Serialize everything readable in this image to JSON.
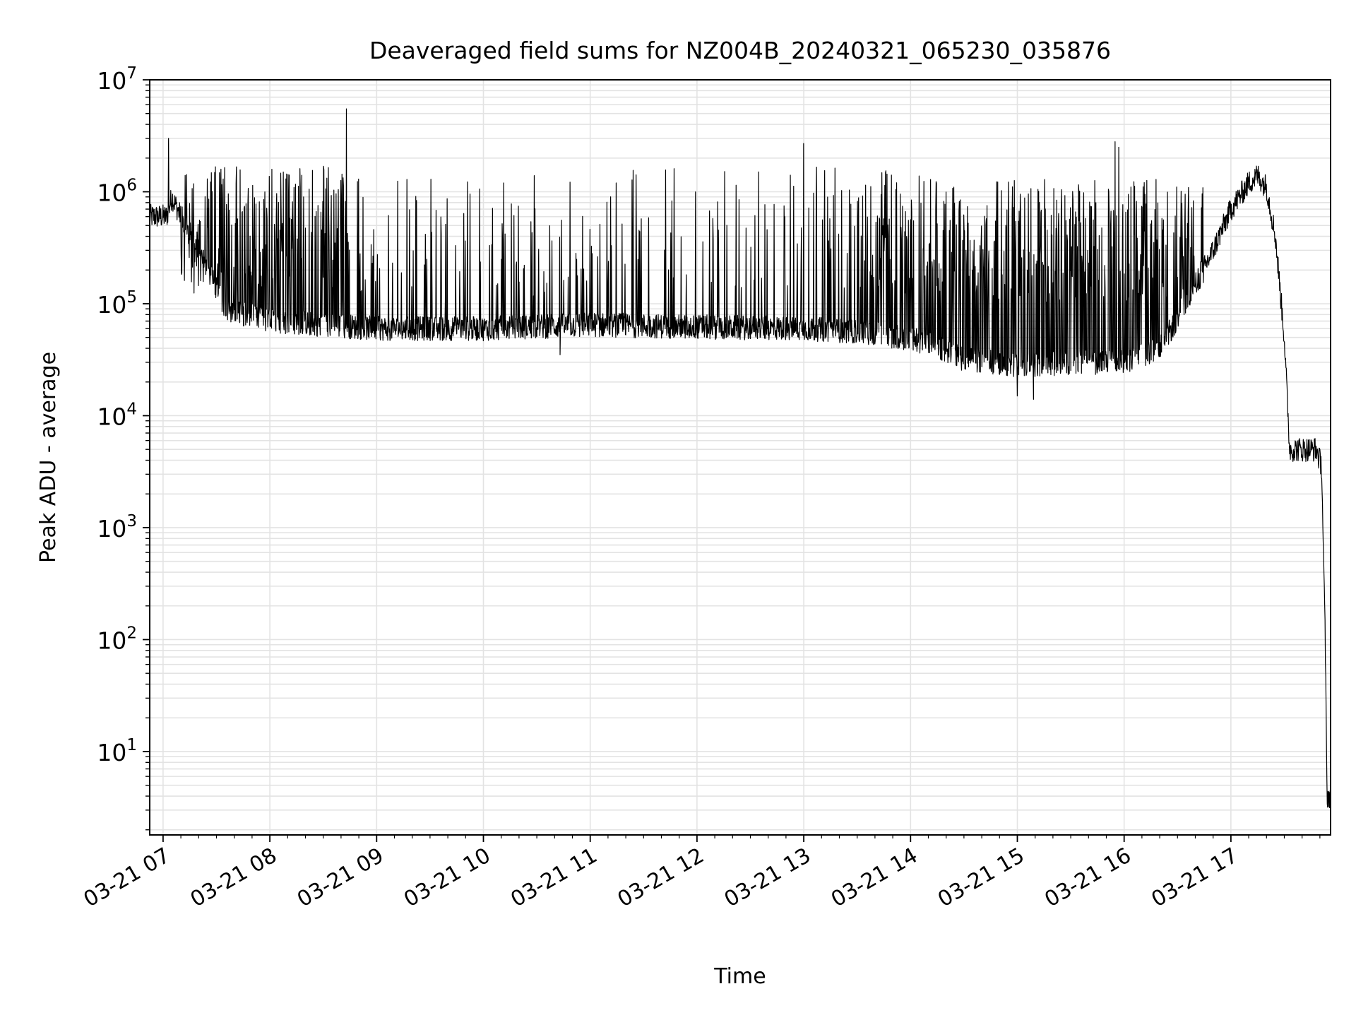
{
  "chart_data": {
    "type": "line",
    "title": "Deaveraged field sums for NZ004B_20240321_065230_035876",
    "xlabel": "Time",
    "ylabel": "Peak ADU - average",
    "yscale": "log",
    "ylim": [
      1.8,
      10000000
    ],
    "xlim": [
      "2024-03-21 06:52:30",
      "2024-03-21 17:56:00"
    ],
    "grid": true,
    "legend": "none",
    "line_color": "#000000",
    "x_ticks": [
      {
        "value": "2024-03-21 07:00",
        "label": "03-21 07"
      },
      {
        "value": "2024-03-21 08:00",
        "label": "03-21 08"
      },
      {
        "value": "2024-03-21 09:00",
        "label": "03-21 09"
      },
      {
        "value": "2024-03-21 10:00",
        "label": "03-21 10"
      },
      {
        "value": "2024-03-21 11:00",
        "label": "03-21 11"
      },
      {
        "value": "2024-03-21 12:00",
        "label": "03-21 12"
      },
      {
        "value": "2024-03-21 13:00",
        "label": "03-21 13"
      },
      {
        "value": "2024-03-21 14:00",
        "label": "03-21 14"
      },
      {
        "value": "2024-03-21 15:00",
        "label": "03-21 15"
      },
      {
        "value": "2024-03-21 16:00",
        "label": "03-21 16"
      },
      {
        "value": "2024-03-21 17:00",
        "label": "03-21 17"
      }
    ],
    "y_ticks": [
      {
        "value": 10,
        "base": "10",
        "exp": "1"
      },
      {
        "value": 100,
        "base": "10",
        "exp": "2"
      },
      {
        "value": 1000,
        "base": "10",
        "exp": "3"
      },
      {
        "value": 10000,
        "base": "10",
        "exp": "4"
      },
      {
        "value": 100000,
        "base": "10",
        "exp": "5"
      },
      {
        "value": 1000000,
        "base": "10",
        "exp": "6"
      },
      {
        "value": 10000000,
        "base": "10",
        "exp": "7"
      }
    ],
    "series": [
      {
        "baseline": [
          [
            "2024-03-21 06:52:30",
            600000
          ],
          [
            "2024-03-21 07:02",
            600000
          ],
          [
            "2024-03-21 07:05",
            900000
          ],
          [
            "2024-03-21 07:10",
            600000
          ],
          [
            "2024-03-21 07:20",
            300000
          ],
          [
            "2024-03-21 07:35",
            90000
          ],
          [
            "2024-03-21 08:00",
            70000
          ],
          [
            "2024-03-21 08:30",
            65000
          ],
          [
            "2024-03-21 09:00",
            60000
          ],
          [
            "2024-03-21 10:00",
            60000
          ],
          [
            "2024-03-21 11:00",
            65000
          ],
          [
            "2024-03-21 12:00",
            62000
          ],
          [
            "2024-03-21 13:00",
            60000
          ],
          [
            "2024-03-21 13:40",
            55000
          ],
          [
            "2024-03-21 14:10",
            45000
          ],
          [
            "2024-03-21 14:30",
            32000
          ],
          [
            "2024-03-21 15:00",
            28000
          ],
          [
            "2024-03-21 15:30",
            30000
          ],
          [
            "2024-03-21 16:00",
            30000
          ],
          [
            "2024-03-21 16:20",
            40000
          ],
          [
            "2024-03-21 16:35",
            100000
          ],
          [
            "2024-03-21 16:50",
            300000
          ],
          [
            "2024-03-21 17:00",
            700000
          ],
          [
            "2024-03-21 17:10",
            1200000
          ],
          [
            "2024-03-21 17:15",
            1400000
          ],
          [
            "2024-03-21 17:20",
            1100000
          ],
          [
            "2024-03-21 17:25",
            400000
          ],
          [
            "2024-03-21 17:30",
            50000
          ],
          [
            "2024-03-21 17:33",
            5000
          ],
          [
            "2024-03-21 17:48",
            5000
          ],
          [
            "2024-03-21 17:51",
            3500
          ],
          [
            "2024-03-21 17:53",
            100
          ],
          [
            "2024-03-21 17:54",
            4
          ],
          [
            "2024-03-21 17:56",
            4
          ]
        ],
        "peak_envelope": [
          [
            "2024-03-21 07:10",
            1400000
          ],
          [
            "2024-03-21 07:30",
            1700000
          ],
          [
            "2024-03-21 08:30",
            1700000
          ],
          [
            "2024-03-21 09:00",
            1300000
          ],
          [
            "2024-03-21 10:00",
            1300000
          ],
          [
            "2024-03-21 11:00",
            1600000
          ],
          [
            "2024-03-21 12:00",
            1700000
          ],
          [
            "2024-03-21 13:00",
            1700000
          ],
          [
            "2024-03-21 14:00",
            1500000
          ],
          [
            "2024-03-21 15:00",
            1300000
          ],
          [
            "2024-03-21 16:00",
            1300000
          ],
          [
            "2024-03-21 17:00",
            1400000
          ]
        ],
        "spikes": [
          [
            "2024-03-21 07:03",
            3000000
          ],
          [
            "2024-03-21 08:43",
            5500000
          ],
          [
            "2024-03-21 13:00",
            2700000
          ],
          [
            "2024-03-21 15:55",
            2800000
          ],
          [
            "2024-03-21 15:57",
            2500000
          ]
        ],
        "dips": [
          [
            "2024-03-21 10:43",
            35000
          ],
          [
            "2024-03-21 15:00",
            15000
          ],
          [
            "2024-03-21 15:09",
            14000
          ]
        ]
      }
    ]
  }
}
